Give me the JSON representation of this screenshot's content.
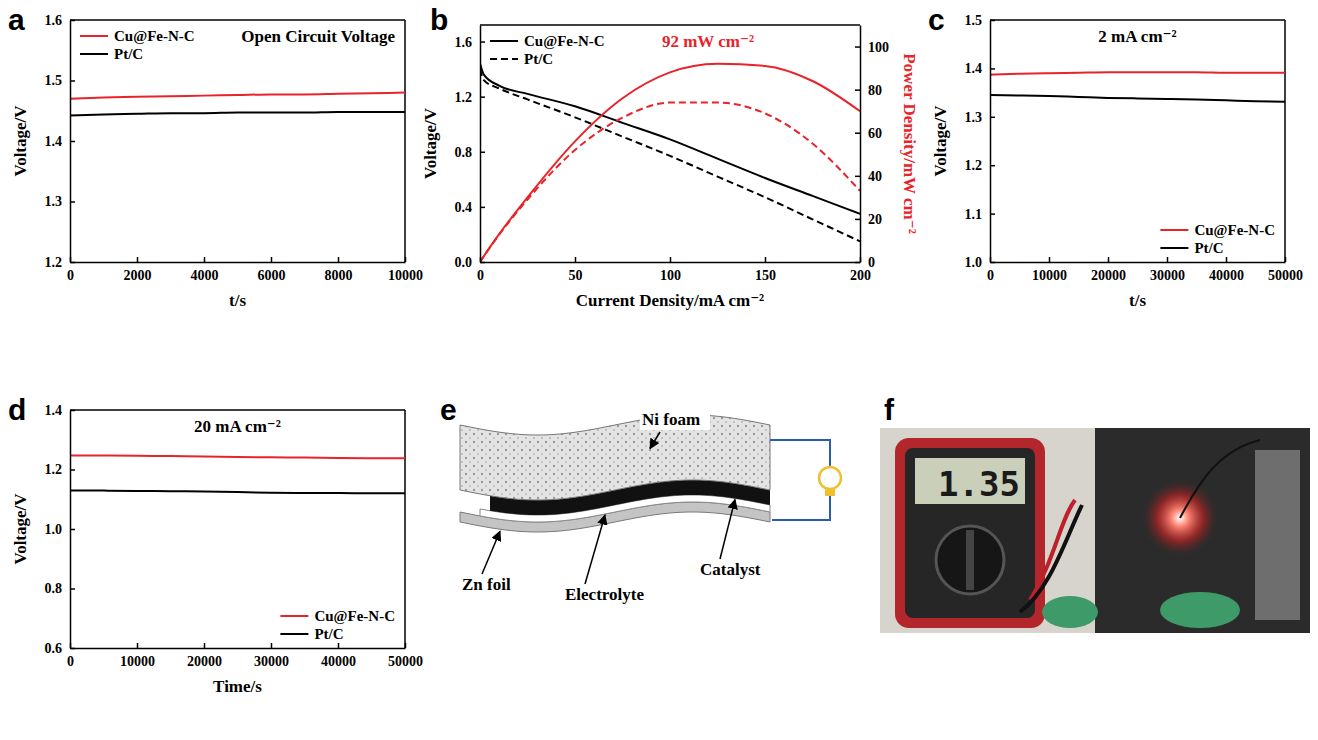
{
  "chart_data": [
    {
      "type": "line",
      "panel_label": "a",
      "annotation": "Open Circuit Voltage",
      "x_label": "t/s",
      "y_label": "Voltage/V",
      "x": [
        0,
        1000,
        2000,
        3000,
        4000,
        5000,
        6000,
        7000,
        8000,
        9000,
        10000
      ],
      "xlim": [
        0,
        10000
      ],
      "xticks": [
        0,
        2000,
        4000,
        6000,
        8000,
        10000
      ],
      "ylim": [
        1.2,
        1.6
      ],
      "yticks": [
        1.2,
        1.3,
        1.4,
        1.5,
        1.6
      ],
      "legend": "upper left",
      "series": [
        {
          "name": "Cu@Fe-N-C",
          "color": "#e8232a",
          "line_style": "solid",
          "values": [
            1.47,
            1.472,
            1.473,
            1.474,
            1.475,
            1.476,
            1.477,
            1.477,
            1.478,
            1.479,
            1.48
          ]
        },
        {
          "name": "Pt/C",
          "color": "#000000",
          "line_style": "solid",
          "values": [
            1.442,
            1.444,
            1.445,
            1.446,
            1.446,
            1.447,
            1.447,
            1.447,
            1.448,
            1.448,
            1.448
          ]
        }
      ]
    },
    {
      "type": "line",
      "panel_label": "b",
      "annotation": "92 mW cm⁻²",
      "x_label": "Current Density/mA cm⁻²",
      "y_label": "Voltage/V",
      "y2_label": "Power Density/mW cm⁻²",
      "x": [
        0,
        2,
        10,
        25,
        50,
        75,
        100,
        125,
        150,
        175,
        200
      ],
      "xlim": [
        0,
        200
      ],
      "xticks": [
        0,
        50,
        100,
        150,
        200
      ],
      "ylim": [
        0,
        1.72
      ],
      "yticks": [
        {
          "value": 0,
          "label": "0.0"
        },
        0.4,
        0.8,
        1.2,
        1.6
      ],
      "y2lim": [
        0,
        110
      ],
      "y2ticks": [
        0,
        20,
        40,
        60,
        80,
        100
      ],
      "legend": "upper left",
      "series": [
        {
          "name": "Cu@Fe-N-C",
          "color": "#000000",
          "line_style": "solid",
          "values": [
            1.44,
            1.36,
            1.28,
            1.22,
            1.13,
            1.01,
            0.89,
            0.75,
            0.61,
            0.48,
            0.35
          ]
        },
        {
          "name": "Pt/C",
          "color": "#000000",
          "line_style": "dashed",
          "values": [
            1.4,
            1.32,
            1.26,
            1.18,
            1.05,
            0.91,
            0.77,
            0.62,
            0.47,
            0.31,
            0.15
          ]
        },
        {
          "color": "#e8232a",
          "line_style": "solid",
          "axis": "y2",
          "values": [
            0,
            2.7,
            12.8,
            30,
            56,
            76,
            88,
            92,
            91,
            84,
            70
          ]
        },
        {
          "color": "#e8232a",
          "line_style": "dashed",
          "axis": "y2",
          "values": [
            0,
            2.6,
            12.6,
            29,
            52,
            67,
            74,
            74,
            69,
            55,
            33
          ]
        }
      ]
    },
    {
      "type": "line",
      "panel_label": "c",
      "annotation": "2 mA cm⁻²",
      "x_label": "t/s",
      "y_label": "Voltage/V",
      "x": [
        0,
        5000,
        10000,
        15000,
        20000,
        25000,
        30000,
        35000,
        40000,
        45000,
        50000
      ],
      "xlim": [
        0,
        50000
      ],
      "xticks": [
        0,
        10000,
        20000,
        30000,
        40000,
        50000
      ],
      "ylim": [
        1.0,
        1.5
      ],
      "yticks": [
        {
          "value": 1.0,
          "label": "1.0"
        },
        1.1,
        1.2,
        1.3,
        1.4,
        1.5
      ],
      "legend": "lower right",
      "series": [
        {
          "name": "Cu@Fe-N-C",
          "color": "#e8232a",
          "line_style": "solid",
          "values": [
            1.387,
            1.389,
            1.39,
            1.391,
            1.392,
            1.392,
            1.392,
            1.392,
            1.391,
            1.391,
            1.391
          ]
        },
        {
          "name": "Pt/C",
          "color": "#000000",
          "line_style": "solid",
          "values": [
            1.345,
            1.344,
            1.343,
            1.341,
            1.339,
            1.338,
            1.337,
            1.336,
            1.334,
            1.332,
            1.331
          ]
        }
      ]
    },
    {
      "type": "line",
      "panel_label": "d",
      "annotation": "20 mA cm⁻²",
      "x_label": "Time/s",
      "y_label": "Voltage/V",
      "x": [
        0,
        5000,
        10000,
        15000,
        20000,
        25000,
        30000,
        35000,
        40000,
        45000,
        50000
      ],
      "xlim": [
        0,
        50000
      ],
      "xticks": [
        0,
        10000,
        20000,
        30000,
        40000,
        50000
      ],
      "ylim": [
        0.6,
        1.4
      ],
      "yticks": [
        0.6,
        0.8,
        {
          "value": 1.0,
          "label": "1.0"
        },
        1.2,
        1.4
      ],
      "legend": "lower right",
      "series": [
        {
          "name": "Cu@Fe-N-C",
          "color": "#e8232a",
          "line_style": "solid",
          "values": [
            1.247,
            1.247,
            1.246,
            1.245,
            1.244,
            1.242,
            1.241,
            1.24,
            1.239,
            1.238,
            1.238
          ]
        },
        {
          "name": "Pt/C",
          "color": "#000000",
          "line_style": "solid",
          "values": [
            1.129,
            1.129,
            1.128,
            1.127,
            1.126,
            1.124,
            1.122,
            1.121,
            1.121,
            1.12,
            1.12
          ]
        }
      ]
    }
  ],
  "diagram": {
    "panel_label": "e",
    "labels": {
      "ni_foam": "Ni foam",
      "zn_foil": "Zn foil",
      "electrolyte": "Electrolyte",
      "catalyst": "Catalyst"
    }
  },
  "photo": {
    "panel_label": "f",
    "meter_reading": "1.35"
  }
}
